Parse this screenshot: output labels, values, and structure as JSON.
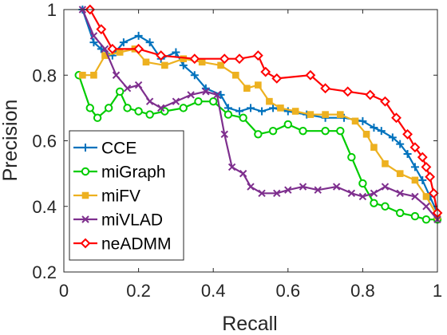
{
  "chart_data": {
    "type": "line",
    "xlabel": "Recall",
    "ylabel": "Precision",
    "xlim": [
      0,
      1
    ],
    "ylim": [
      0.2,
      1
    ],
    "xticks": [
      0,
      0.2,
      0.4,
      0.6,
      0.8,
      1
    ],
    "xtick_labels": [
      "0",
      "0.2",
      "0.4",
      "0.6",
      "0.8",
      "1"
    ],
    "yticks": [
      0.2,
      0.4,
      0.6,
      0.8,
      1
    ],
    "ytick_labels": [
      "0.2",
      "0.4",
      "0.6",
      "0.8",
      "1"
    ],
    "grid": false,
    "legend_position": "bottom-left",
    "series": [
      {
        "name": "CCE",
        "color": "#0072BD",
        "marker": "plus",
        "points": [
          [
            0.05,
            1.0
          ],
          [
            0.08,
            0.9
          ],
          [
            0.1,
            0.88
          ],
          [
            0.13,
            0.86
          ],
          [
            0.16,
            0.9
          ],
          [
            0.2,
            0.92
          ],
          [
            0.23,
            0.9
          ],
          [
            0.26,
            0.85
          ],
          [
            0.3,
            0.87
          ],
          [
            0.32,
            0.83
          ],
          [
            0.35,
            0.8
          ],
          [
            0.38,
            0.76
          ],
          [
            0.42,
            0.74
          ],
          [
            0.44,
            0.7
          ],
          [
            0.47,
            0.69
          ],
          [
            0.5,
            0.7
          ],
          [
            0.53,
            0.69
          ],
          [
            0.56,
            0.7
          ],
          [
            0.6,
            0.69
          ],
          [
            0.65,
            0.68
          ],
          [
            0.7,
            0.67
          ],
          [
            0.75,
            0.67
          ],
          [
            0.8,
            0.66
          ],
          [
            0.83,
            0.64
          ],
          [
            0.85,
            0.63
          ],
          [
            0.88,
            0.61
          ],
          [
            0.9,
            0.59
          ],
          [
            0.92,
            0.56
          ],
          [
            0.94,
            0.52
          ],
          [
            0.96,
            0.48
          ],
          [
            0.98,
            0.43
          ],
          [
            1.0,
            0.38
          ]
        ]
      },
      {
        "name": "miGraph",
        "color": "#00CC00",
        "marker": "circle",
        "points": [
          [
            0.04,
            0.8
          ],
          [
            0.07,
            0.7
          ],
          [
            0.09,
            0.67
          ],
          [
            0.12,
            0.7
          ],
          [
            0.15,
            0.75
          ],
          [
            0.17,
            0.7
          ],
          [
            0.2,
            0.69
          ],
          [
            0.23,
            0.68
          ],
          [
            0.27,
            0.69
          ],
          [
            0.32,
            0.7
          ],
          [
            0.36,
            0.72
          ],
          [
            0.4,
            0.72
          ],
          [
            0.44,
            0.68
          ],
          [
            0.48,
            0.67
          ],
          [
            0.52,
            0.62
          ],
          [
            0.56,
            0.63
          ],
          [
            0.6,
            0.65
          ],
          [
            0.64,
            0.63
          ],
          [
            0.7,
            0.63
          ],
          [
            0.74,
            0.63
          ],
          [
            0.77,
            0.55
          ],
          [
            0.8,
            0.47
          ],
          [
            0.83,
            0.41
          ],
          [
            0.86,
            0.4
          ],
          [
            0.9,
            0.38
          ],
          [
            0.94,
            0.37
          ],
          [
            0.97,
            0.36
          ],
          [
            1.0,
            0.36
          ]
        ]
      },
      {
        "name": "miFV",
        "color": "#EDB120",
        "marker": "square",
        "points": [
          [
            0.05,
            0.8
          ],
          [
            0.08,
            0.8
          ],
          [
            0.11,
            0.86
          ],
          [
            0.15,
            0.87
          ],
          [
            0.19,
            0.88
          ],
          [
            0.22,
            0.84
          ],
          [
            0.27,
            0.83
          ],
          [
            0.32,
            0.85
          ],
          [
            0.37,
            0.84
          ],
          [
            0.42,
            0.83
          ],
          [
            0.46,
            0.8
          ],
          [
            0.49,
            0.76
          ],
          [
            0.52,
            0.77
          ],
          [
            0.55,
            0.72
          ],
          [
            0.58,
            0.7
          ],
          [
            0.62,
            0.69
          ],
          [
            0.66,
            0.68
          ],
          [
            0.7,
            0.68
          ],
          [
            0.74,
            0.68
          ],
          [
            0.78,
            0.66
          ],
          [
            0.81,
            0.62
          ],
          [
            0.83,
            0.58
          ],
          [
            0.86,
            0.53
          ],
          [
            0.9,
            0.5
          ],
          [
            0.94,
            0.48
          ],
          [
            0.97,
            0.43
          ],
          [
            1.0,
            0.37
          ]
        ]
      },
      {
        "name": "miVLAD",
        "color": "#7E2F8E",
        "marker": "x",
        "points": [
          [
            0.05,
            1.0
          ],
          [
            0.08,
            0.92
          ],
          [
            0.11,
            0.88
          ],
          [
            0.14,
            0.8
          ],
          [
            0.17,
            0.76
          ],
          [
            0.2,
            0.77
          ],
          [
            0.23,
            0.72
          ],
          [
            0.26,
            0.7
          ],
          [
            0.3,
            0.72
          ],
          [
            0.34,
            0.74
          ],
          [
            0.38,
            0.75
          ],
          [
            0.41,
            0.74
          ],
          [
            0.43,
            0.62
          ],
          [
            0.45,
            0.52
          ],
          [
            0.48,
            0.5
          ],
          [
            0.5,
            0.46
          ],
          [
            0.53,
            0.44
          ],
          [
            0.57,
            0.44
          ],
          [
            0.6,
            0.45
          ],
          [
            0.64,
            0.46
          ],
          [
            0.68,
            0.45
          ],
          [
            0.73,
            0.46
          ],
          [
            0.77,
            0.44
          ],
          [
            0.8,
            0.43
          ],
          [
            0.83,
            0.44
          ],
          [
            0.86,
            0.46
          ],
          [
            0.9,
            0.44
          ],
          [
            0.94,
            0.43
          ],
          [
            0.97,
            0.4
          ],
          [
            1.0,
            0.36
          ]
        ]
      },
      {
        "name": "neADMM",
        "color": "#FF0000",
        "marker": "diamond",
        "points": [
          [
            0.07,
            1.0
          ],
          [
            0.1,
            0.94
          ],
          [
            0.13,
            0.88
          ],
          [
            0.2,
            0.88
          ],
          [
            0.26,
            0.86
          ],
          [
            0.35,
            0.85
          ],
          [
            0.43,
            0.85
          ],
          [
            0.47,
            0.85
          ],
          [
            0.52,
            0.86
          ],
          [
            0.54,
            0.81
          ],
          [
            0.57,
            0.79
          ],
          [
            0.66,
            0.8
          ],
          [
            0.7,
            0.76
          ],
          [
            0.76,
            0.75
          ],
          [
            0.82,
            0.74
          ],
          [
            0.86,
            0.72
          ],
          [
            0.89,
            0.67
          ],
          [
            0.92,
            0.62
          ],
          [
            0.94,
            0.58
          ],
          [
            0.96,
            0.55
          ],
          [
            0.97,
            0.52
          ],
          [
            0.98,
            0.49
          ],
          [
            0.99,
            0.44
          ],
          [
            1.0,
            0.38
          ]
        ]
      }
    ]
  }
}
